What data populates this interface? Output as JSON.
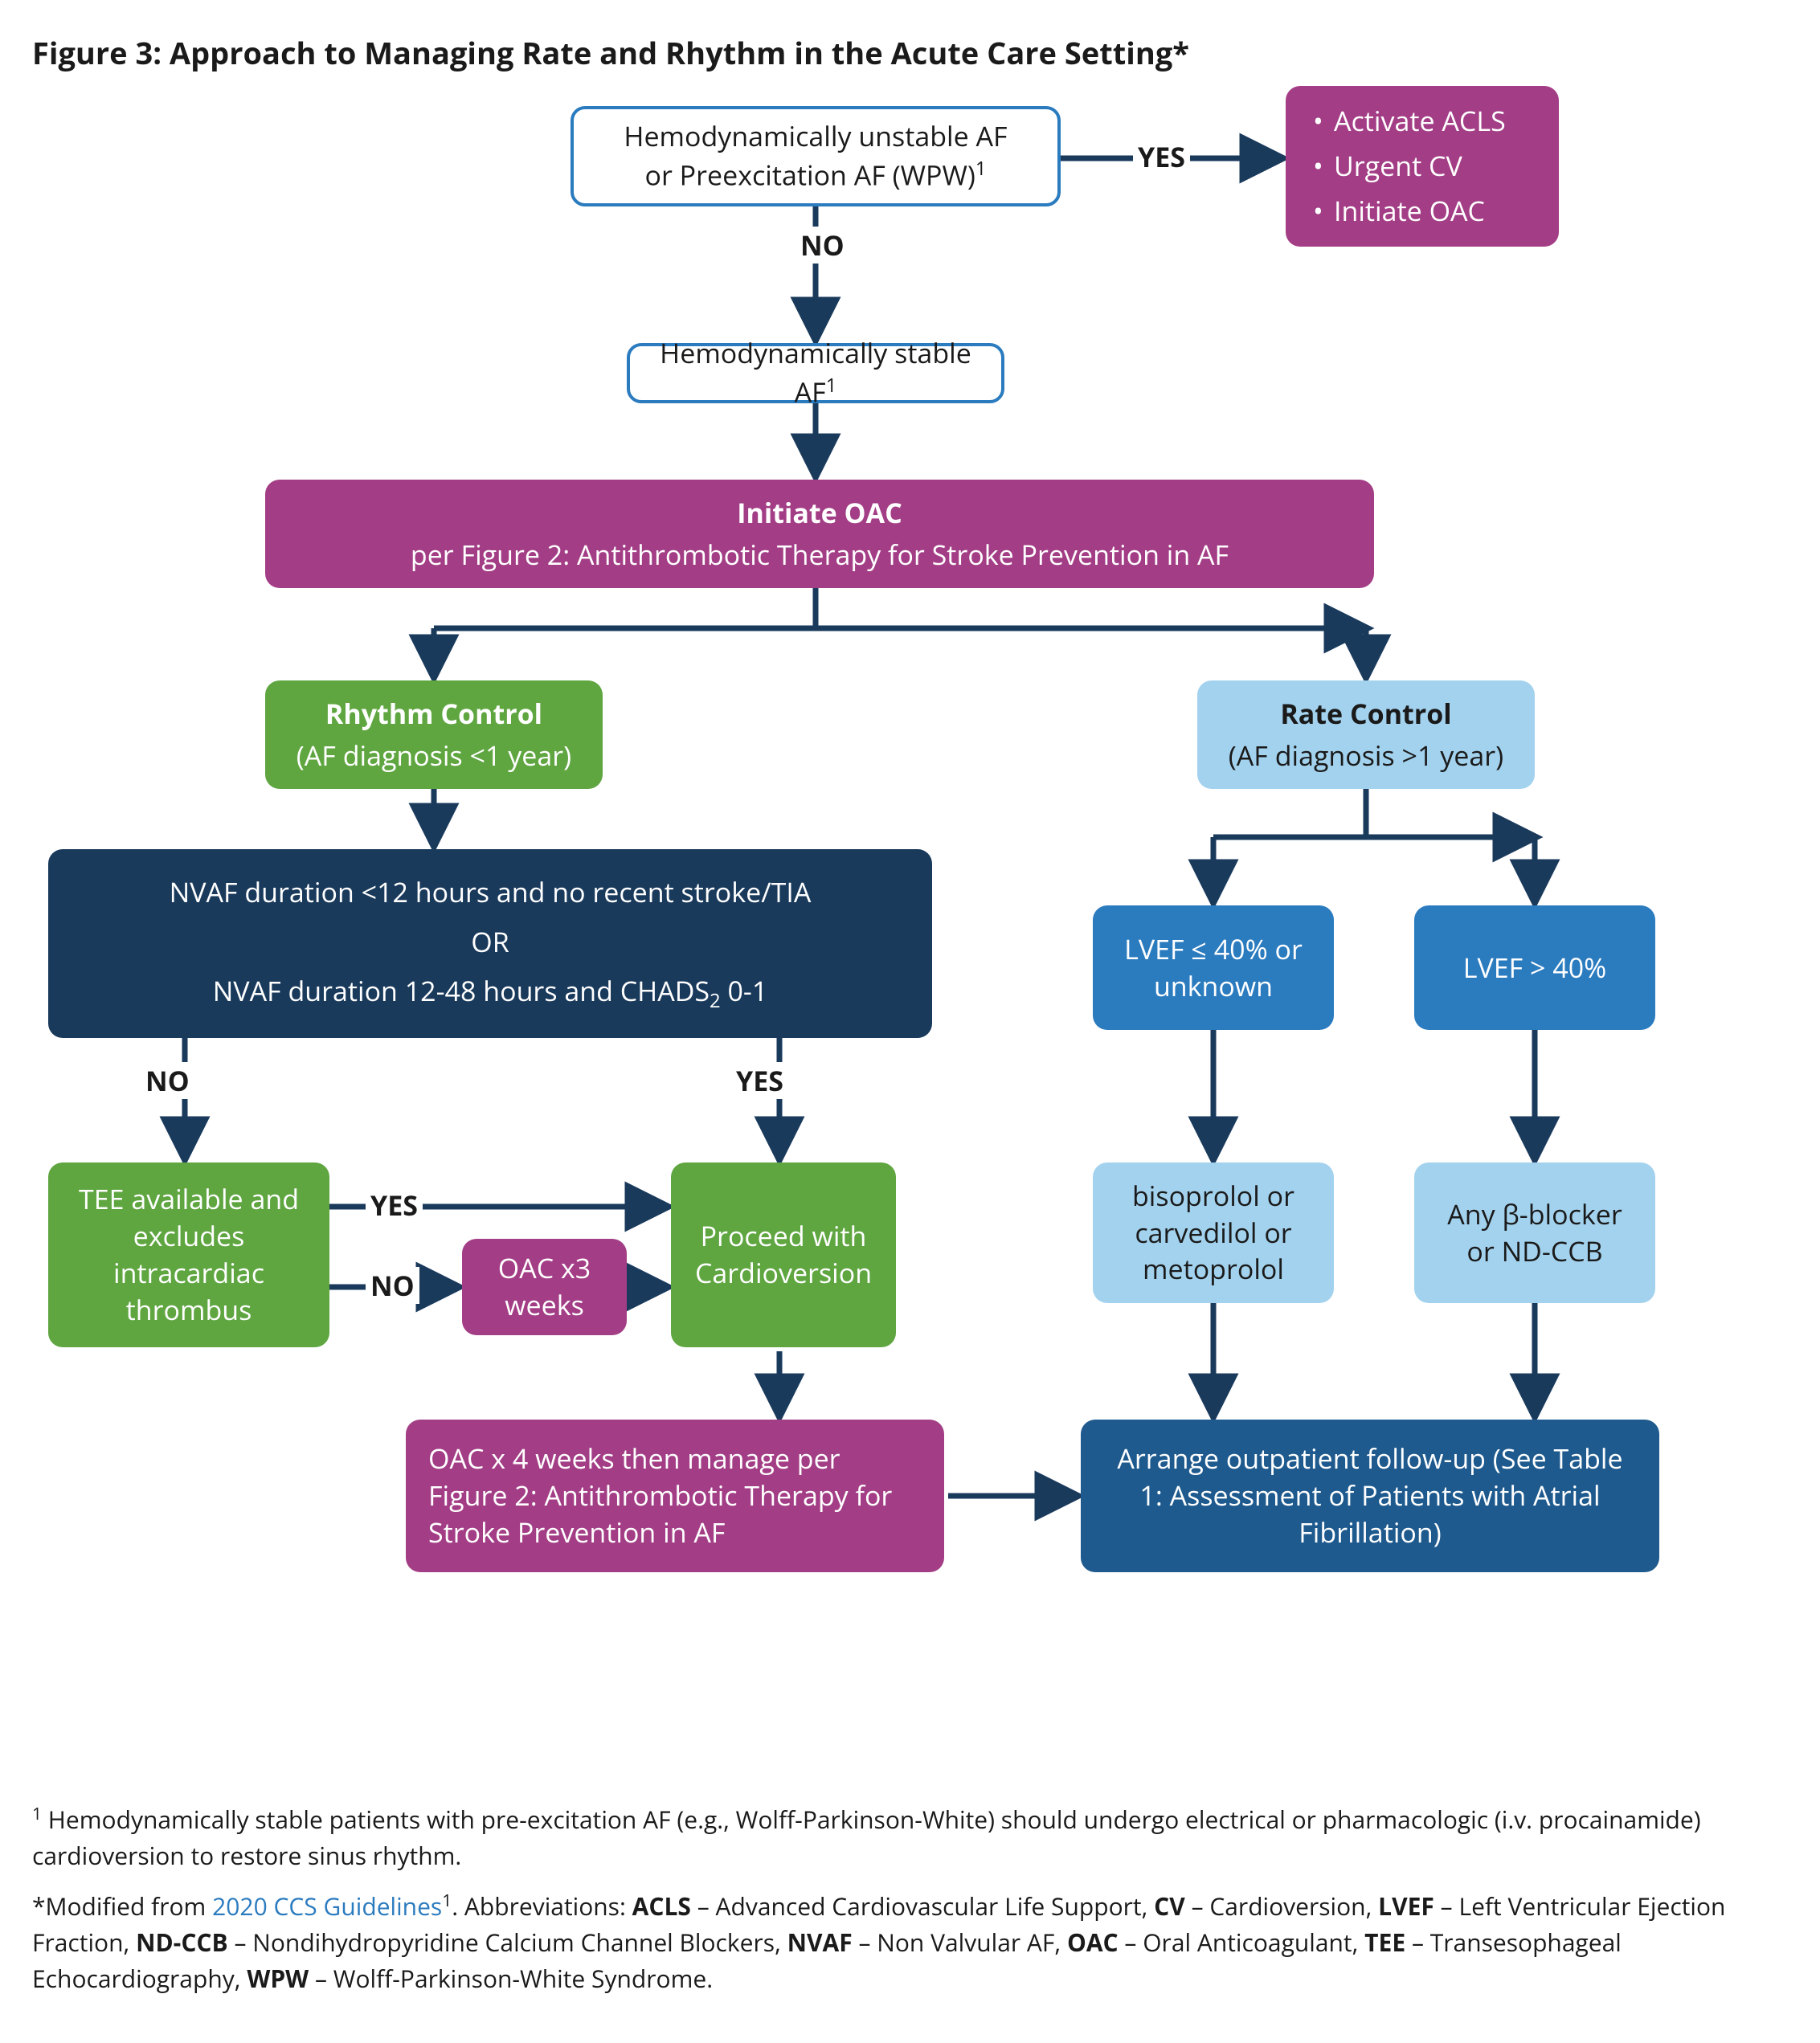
{
  "title": "Figure 3: Approach to Managing Rate and Rhythm in the Acute Care Setting*",
  "colors": {
    "arrow": "#1a3a5c",
    "white_border": "#2b7bbf",
    "magenta": "#a33e86",
    "green": "#5fa641",
    "navy": "#1a3a5c",
    "lightblue": "#a3d2ee",
    "medblue": "#2b7bbf",
    "darkblue": "#1e5a8e",
    "link": "#2b7bbf"
  },
  "diagram_type": "flowchart",
  "nodes": {
    "n1": {
      "text": "Hemodynamically unstable AF\nor Preexcitation AF (WPW)",
      "sup": "1"
    },
    "n2": {
      "bullets": [
        "Activate ACLS",
        "Urgent CV",
        "Initiate OAC"
      ]
    },
    "n3": {
      "text": "Hemodynamically stable AF",
      "sup": "1"
    },
    "n4": {
      "line1": "Initiate OAC",
      "line2": "per Figure 2: Antithrombotic Therapy for Stroke Prevention in AF"
    },
    "n5": {
      "line1": "Rhythm Control",
      "line2": "(AF diagnosis <1 year)"
    },
    "n6": {
      "line1": "Rate Control",
      "line2": "(AF diagnosis >1 year)"
    },
    "n7": {
      "line1": "NVAF duration <12 hours and no recent stroke/TIA",
      "mid": "OR",
      "line2": "NVAF duration 12-48 hours and CHADS",
      "sub": "2",
      "tail": " 0-1"
    },
    "n8": {
      "text": "LVEF ≤ 40% or unknown"
    },
    "n9": {
      "text": "LVEF > 40%"
    },
    "n10": {
      "text": "TEE available and excludes intracardiac thrombus"
    },
    "n11": {
      "text": "OAC x3 weeks"
    },
    "n12": {
      "text": "Proceed with Cardioversion"
    },
    "n13": {
      "text": "bisoprolol or carvedilol or metoprolol"
    },
    "n14": {
      "text": "Any β-blocker or ND-CCB"
    },
    "n15": {
      "text": "OAC x 4 weeks then manage per Figure 2: Antithrombotic Therapy for Stroke Prevention in AF"
    },
    "n16": {
      "text": "Arrange outpatient follow-up (See Table 1: Assessment of Patients with Atrial Fibrillation)"
    }
  },
  "labels": {
    "yes1": "YES",
    "no1": "NO",
    "yes2": "YES",
    "no2": "NO",
    "yes3": "YES",
    "no3": "NO"
  },
  "footnotes": {
    "f1_pre": "",
    "f1_sup": "1",
    "f1": " Hemodynamically stable patients with pre-excitation AF (e.g., Wolff-Parkinson-White) should undergo electrical or pharmacologic (i.v. procainamide) cardioversion to restore sinus rhythm.",
    "f2_pre": "*Modified from ",
    "f2_link": "2020 CCS Guidelines",
    "f2_sup": "1",
    "f2_post": ". Abbreviations: ",
    "abbr": [
      {
        "k": "ACLS",
        "v": " – Advanced Cardiovascular Life Support, "
      },
      {
        "k": "CV",
        "v": " – Cardioversion, "
      },
      {
        "k": "LVEF",
        "v": " – Left Ventricular Ejection Fraction, "
      },
      {
        "k": "ND-CCB",
        "v": " – Nondihydropyridine Calcium Channel Blockers, "
      },
      {
        "k": "NVAF",
        "v": " – Non Valvular AF, "
      },
      {
        "k": "OAC",
        "v": " – Oral Anticoagulant, "
      },
      {
        "k": "TEE",
        "v": " – Transesophageal Echocardiography, "
      },
      {
        "k": "WPW",
        "v": " – Wolff-Parkinson-White Syndrome."
      }
    ]
  }
}
